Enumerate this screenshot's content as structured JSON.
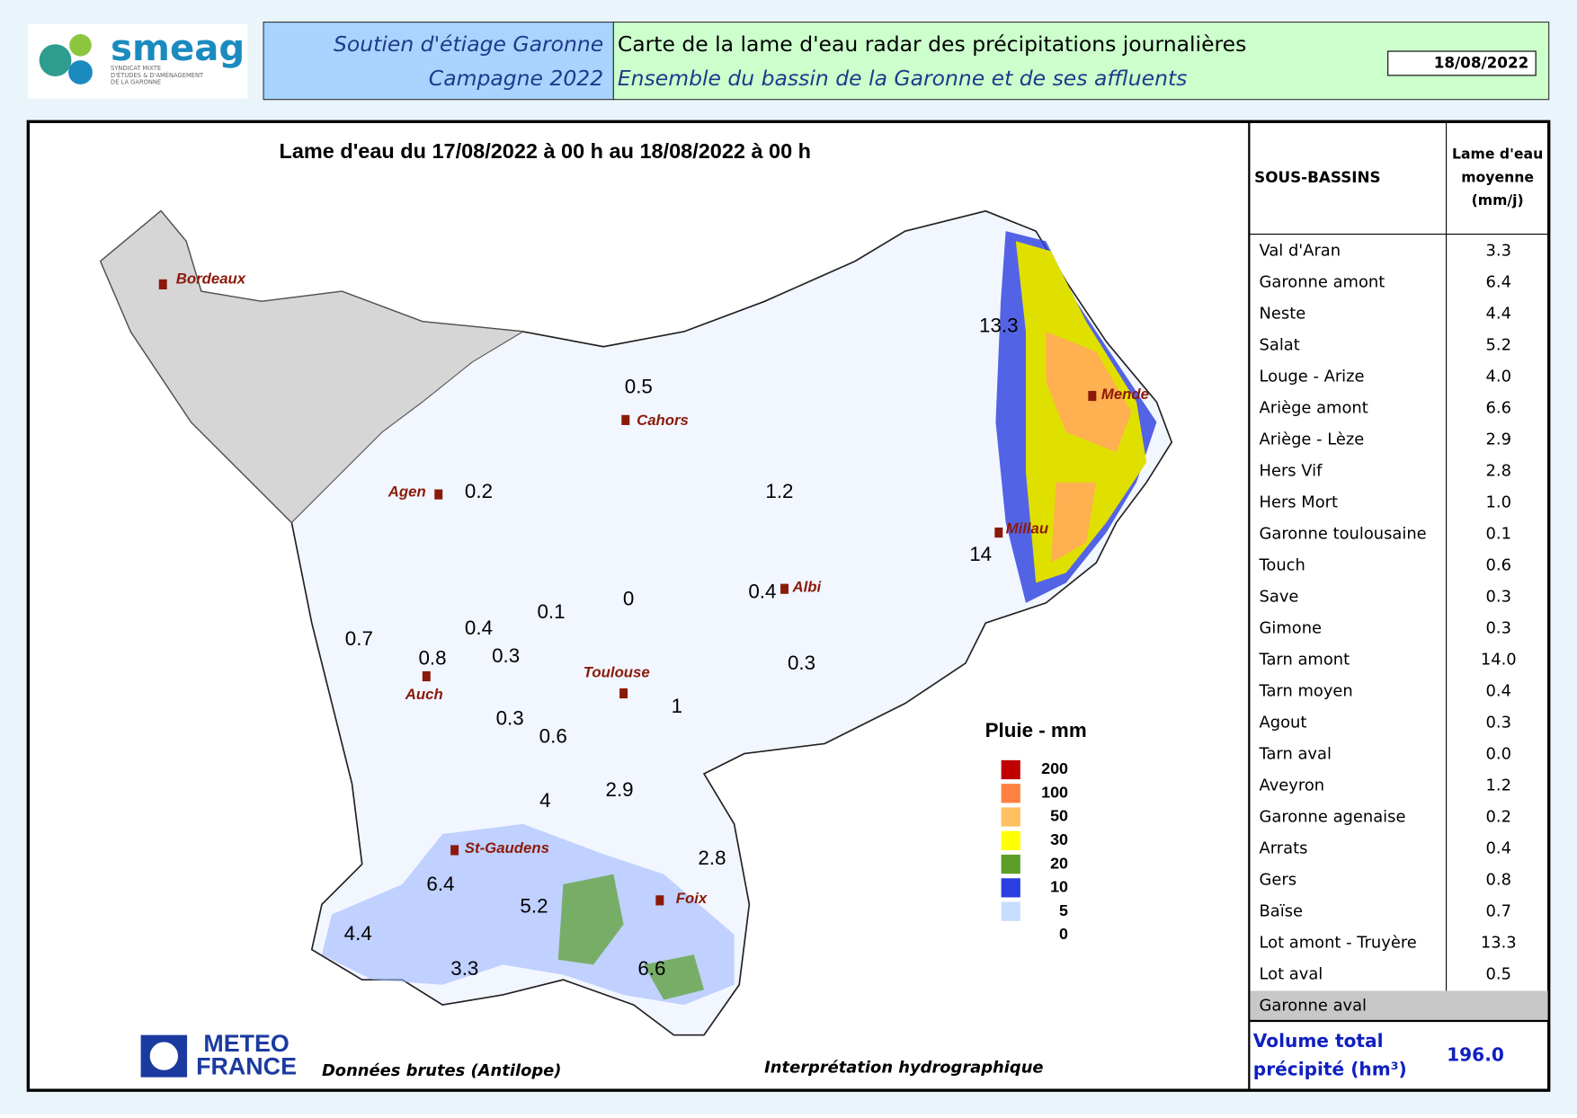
{
  "header": {
    "logo": {
      "name": "smeag",
      "subtitle": [
        "SYNDICAT MIXTE",
        "D'ÉTUDES & D'AMÉNAGEMENT",
        "DE LA GARONNE"
      ]
    },
    "left": [
      "Soutien d'étiage Garonne",
      "Campagne 2022"
    ],
    "right": [
      "Carte de la lame d'eau radar des précipitations journalières",
      "Ensemble du bassin de la Garonne et de ses affluents"
    ],
    "date": "18/08/2022"
  },
  "map": {
    "title": "Lame d'eau du 17/08/2022 à 00 h au 18/08/2022 à 00 h",
    "values": [
      0.5,
      1.2,
      0.2,
      13.3,
      14,
      0.4,
      0,
      0.1,
      0.4,
      0.7,
      0.8,
      0.3,
      0.3,
      0.3,
      0.6,
      1,
      4,
      2.9,
      2.8,
      6.4,
      5.2,
      4.4,
      3.3,
      6.6
    ],
    "cities": [
      "Bordeaux",
      "Cahors",
      "Agen",
      "Mende",
      "Millau",
      "Albi",
      "Toulouse",
      "Auch",
      "St-Gaudens",
      "Foix"
    ],
    "legend": {
      "title": "Pluie - mm",
      "items": [
        {
          "label": "200",
          "color": "#c00000"
        },
        {
          "label": "100",
          "color": "#ff8040"
        },
        {
          "label": "50",
          "color": "#ffc060"
        },
        {
          "label": "30",
          "color": "#ffff00"
        },
        {
          "label": "20",
          "color": "#5a9e28"
        },
        {
          "label": "10",
          "color": "#2a3fe0"
        },
        {
          "label": "5",
          "color": "#c8dcff"
        },
        {
          "label": "0",
          "color": "#ffffff"
        }
      ]
    },
    "footer": {
      "logo": [
        "METEO",
        "FRANCE"
      ],
      "source": "Données brutes (Antilope)",
      "note": "Interprétation hydrographique"
    }
  },
  "table": {
    "header": [
      "SOUS-BASSINS",
      [
        "Lame d'eau",
        "moyenne",
        "(mm/j)"
      ]
    ],
    "rows": [
      [
        "Val d'Aran",
        "3.3"
      ],
      [
        "Garonne amont",
        "6.4"
      ],
      [
        "Neste",
        "4.4"
      ],
      [
        "Salat",
        "5.2"
      ],
      [
        "Louge - Arize",
        "4.0"
      ],
      [
        "Ariège amont",
        "6.6"
      ],
      [
        "Ariège - Lèze",
        "2.9"
      ],
      [
        "Hers Vif",
        "2.8"
      ],
      [
        "Hers Mort",
        "1.0"
      ],
      [
        "Garonne toulousaine",
        "0.1"
      ],
      [
        "Touch",
        "0.6"
      ],
      [
        "Save",
        "0.3"
      ],
      [
        "Gimone",
        "0.3"
      ],
      [
        "Tarn amont",
        "14.0"
      ],
      [
        "Tarn moyen",
        "0.4"
      ],
      [
        "Agout",
        "0.3"
      ],
      [
        "Tarn aval",
        "0.0"
      ],
      [
        "Aveyron",
        "1.2"
      ],
      [
        "Garonne agenaise",
        "0.2"
      ],
      [
        "Arrats",
        "0.4"
      ],
      [
        "Gers",
        "0.8"
      ],
      [
        "Baïse",
        "0.7"
      ],
      [
        "Lot amont - Truyère",
        "13.3"
      ],
      [
        "Lot aval",
        "0.5"
      ],
      [
        "Garonne aval"
      ]
    ],
    "total": {
      "label": [
        "Volume total",
        "précipité (hm³)"
      ],
      "value": "196.0"
    }
  }
}
